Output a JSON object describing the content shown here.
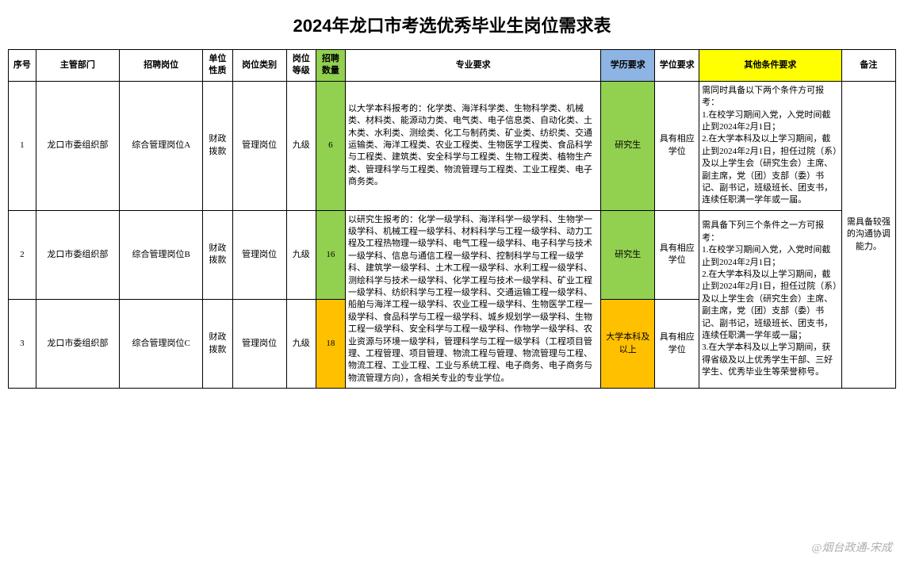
{
  "title": "2024年龙口市考选优秀毕业生岗位需求表",
  "colors": {
    "green": "#92d050",
    "orange": "#ffc000",
    "yellow": "#ffff00",
    "blue": "#8db4e2"
  },
  "headers": {
    "seq": "序号",
    "dept": "主管部门",
    "pos": "招聘岗位",
    "unit": "单位性质",
    "type": "岗位类别",
    "level": "岗位等级",
    "count": "招聘数量",
    "major": "专业要求",
    "edu": "学历要求",
    "degree": "学位要求",
    "other": "其他条件要求",
    "note": "备注"
  },
  "rows": [
    {
      "seq": "1",
      "dept": "龙口市委组织部",
      "pos": "综合管理岗位A",
      "unit": "财政拨款",
      "type": "管理岗位",
      "level": "九级",
      "count": "6",
      "major": "以大学本科报考的：化学类、海洋科学类、生物科学类、机械类、材料类、能源动力类、电气类、电子信息类、自动化类、土木类、水利类、测绘类、化工与制药类、矿业类、纺织类、交通运输类、海洋工程类、农业工程类、生物医学工程类、食品科学与工程类、建筑类、安全科学与工程类、生物工程类、植物生产类、管理科学与工程类、物流管理与工程类、工业工程类、电子商务类。",
      "edu": "研究生",
      "degree": "具有相应学位"
    },
    {
      "seq": "2",
      "dept": "龙口市委组织部",
      "pos": "综合管理岗位B",
      "unit": "财政拨款",
      "type": "管理岗位",
      "level": "九级",
      "count": "16",
      "major": "以研究生报考的：化学一级学科、海洋科学一级学科、生物学一级学科、机械工程一级学科、材料科学与工程一级学科、动力工程及工程热物理一级学科、电气工程一级学科、电子科学与技术一级学科、信息与通信工程一级学科、控制科学与工程一级学科、建筑学一级学科、土木工程一级学科、水利工程一级学科、测绘科学与技术一级学科、化学工程与技术一级学科、矿业工程一级学科、纺织科学与工程一级学科、交通运输工程一级学科、船舶与海洋工程一级学科、农业工程一级学科、生物医学工程一级学科、食品科学与工程一级学科、城乡规划学一级学科、生物工程一级学科、安全科学与工程一级学科、作物学一级学科、农业资源与环境一级学科，管理科学与工程一级学科（工程项目管理、工程管理、项目管理、物流工程与管理、物流管理与工程、物流工程、工业工程、工业与系统工程、电子商务、电子商务与物流管理方向），含相关专业的专业学位。",
      "edu": "研究生",
      "degree": "具有相应学位"
    },
    {
      "seq": "3",
      "dept": "龙口市委组织部",
      "pos": "综合管理岗位C",
      "unit": "财政拨款",
      "type": "管理岗位",
      "level": "九级",
      "count": "18",
      "edu": "大学本科及以上",
      "degree": "具有相应学位"
    }
  ],
  "other_merged_1": "需同时具备以下两个条件方可报考：\n1.在校学习期间入党，入党时间截止到2024年2月1日；\n2.在大学本科及以上学习期间，截止到2024年2月1日，担任过院（系）及以上学生会（研究生会）主席、副主席，党（团）支部（委）书记、副书记，班级班长、团支书，连续任职满一学年或一届。",
  "other_merged_2": "需具备下列三个条件之一方可报考：\n1.在校学习期间入党，入党时间截止到2024年2月1日；\n2.在大学本科及以上学习期间，截止到2024年2月1日，担任过院（系）及以上学生会（研究生会）主席、副主席，党（团）支部（委）书记、副书记，班级班长、团支书，连续任职满一学年或一届；\n3.在大学本科及以上学习期间，获得省级及以上优秀学生干部、三好学生、优秀毕业生等荣誉称号。",
  "note_merged": "需具备较强的沟通协调能力。",
  "watermark": "@烟台政通-宋成"
}
